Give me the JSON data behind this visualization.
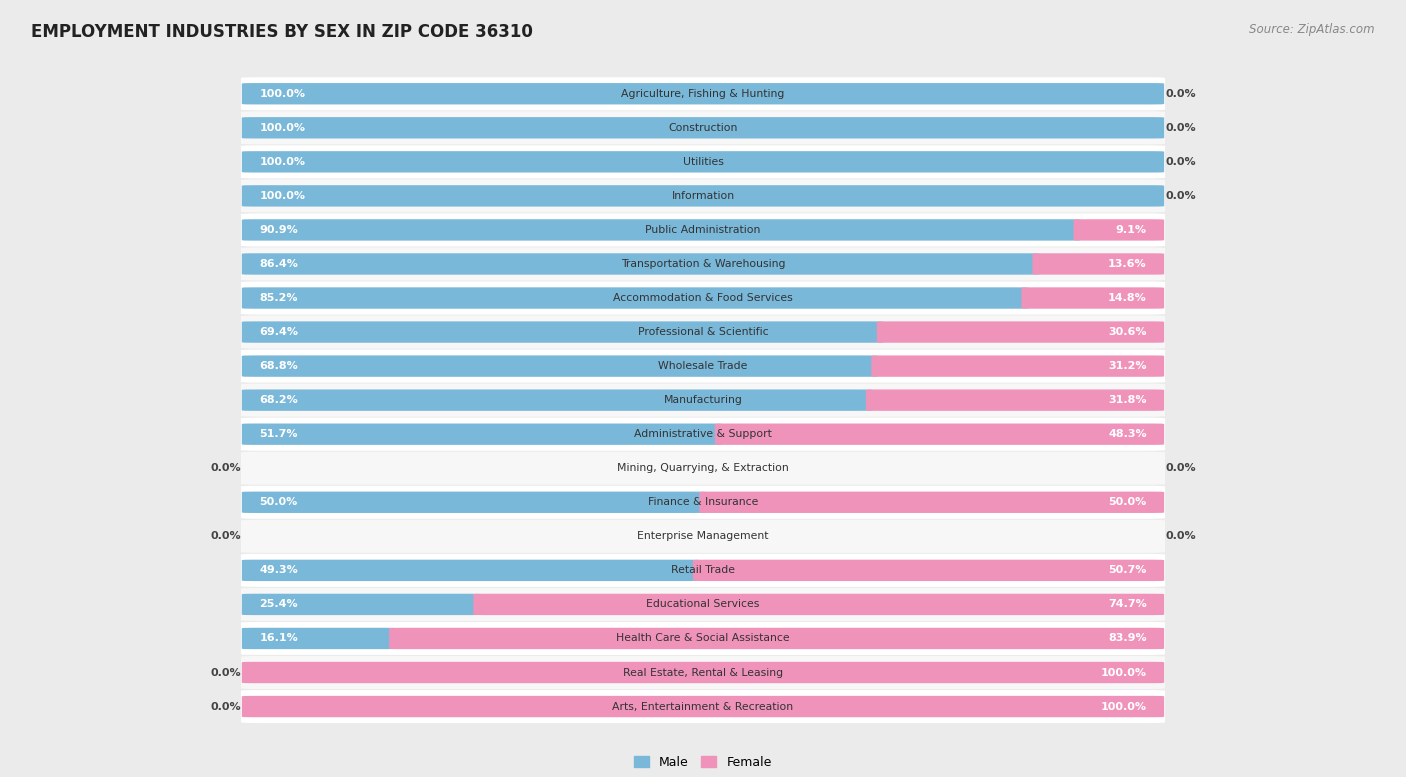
{
  "title": "EMPLOYMENT INDUSTRIES BY SEX IN ZIP CODE 36310",
  "source": "Source: ZipAtlas.com",
  "industries": [
    "Agriculture, Fishing & Hunting",
    "Construction",
    "Utilities",
    "Information",
    "Public Administration",
    "Transportation & Warehousing",
    "Accommodation & Food Services",
    "Professional & Scientific",
    "Wholesale Trade",
    "Manufacturing",
    "Administrative & Support",
    "Mining, Quarrying, & Extraction",
    "Finance & Insurance",
    "Enterprise Management",
    "Retail Trade",
    "Educational Services",
    "Health Care & Social Assistance",
    "Real Estate, Rental & Leasing",
    "Arts, Entertainment & Recreation"
  ],
  "male_pct": [
    100.0,
    100.0,
    100.0,
    100.0,
    90.9,
    86.4,
    85.2,
    69.4,
    68.8,
    68.2,
    51.7,
    0.0,
    50.0,
    0.0,
    49.3,
    25.4,
    16.1,
    0.0,
    0.0
  ],
  "female_pct": [
    0.0,
    0.0,
    0.0,
    0.0,
    9.1,
    13.6,
    14.8,
    30.6,
    31.2,
    31.8,
    48.3,
    0.0,
    50.0,
    0.0,
    50.7,
    74.7,
    83.9,
    100.0,
    100.0
  ],
  "male_color": "#7ab8d9",
  "female_color": "#f093bb",
  "bg_color": "#ebebeb",
  "row_bg_even": "#f7f7f7",
  "row_bg_odd": "#ffffff",
  "title_fontsize": 12,
  "source_fontsize": 8.5,
  "label_fontsize": 8,
  "industry_fontsize": 7.8,
  "bar_height": 0.62,
  "legend_male": "Male",
  "legend_female": "Female"
}
